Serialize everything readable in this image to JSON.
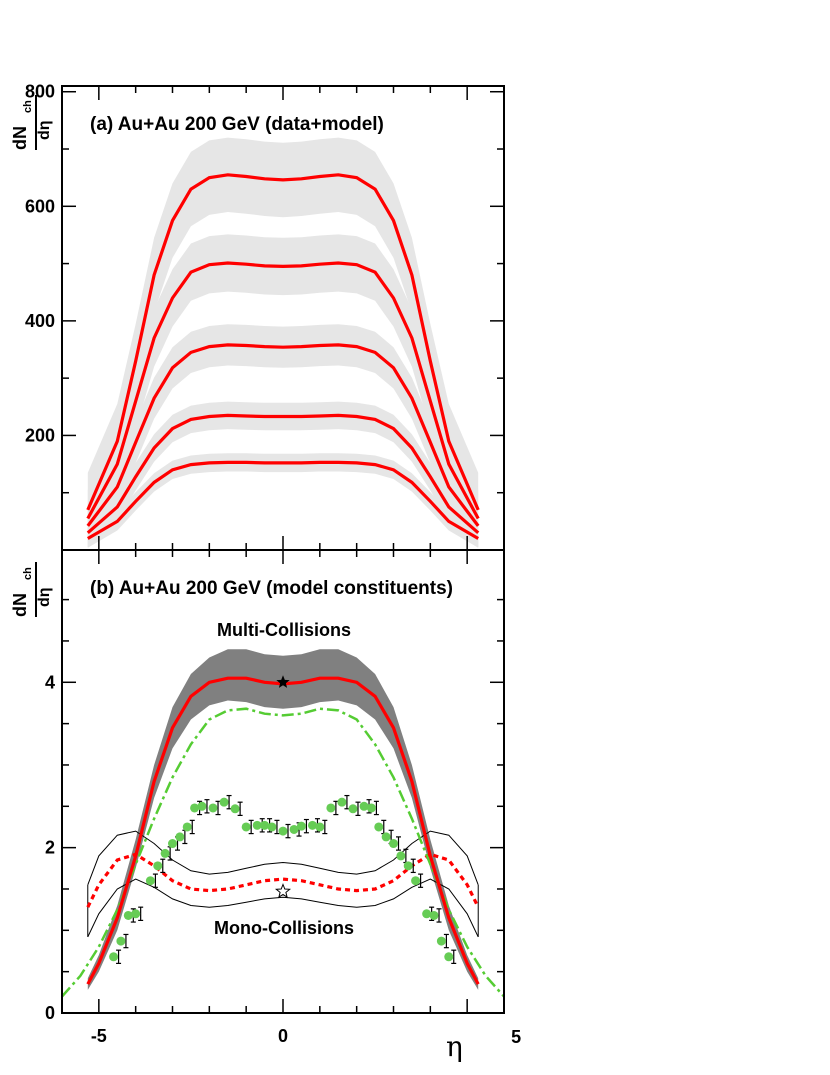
{
  "chart_data": [
    {
      "panel": "a",
      "type": "line",
      "title": "(a) Au+Au 200 GeV (data+model)",
      "ylabel": {
        "numerator": "dN",
        "numerator_sub": "ch",
        "denominator": "dη"
      },
      "xlim": [
        -6,
        6
      ],
      "ylim": [
        0,
        810
      ],
      "yticks": [
        200,
        400,
        600,
        800
      ],
      "band_color": "#e6e6e6",
      "line_color": "#ff0000",
      "series": [
        {
          "x": [
            -5.3,
            -4.5,
            -4,
            -3.5,
            -3,
            -2.5,
            -2,
            -1.5,
            -1,
            -0.5,
            0,
            0.5,
            1,
            1.5,
            2,
            2.5,
            3,
            3.5,
            4,
            4.5,
            5.3
          ],
          "y": [
            70,
            190,
            330,
            480,
            575,
            630,
            650,
            655,
            652,
            648,
            646,
            648,
            652,
            655,
            650,
            630,
            575,
            480,
            330,
            190,
            70
          ],
          "band_width": 65
        },
        {
          "x": [
            -5.3,
            -4.5,
            -4,
            -3.5,
            -3,
            -2.5,
            -2,
            -1.5,
            -1,
            -0.5,
            0,
            0.5,
            1,
            1.5,
            2,
            2.5,
            3,
            3.5,
            4,
            4.5,
            5.3
          ],
          "y": [
            55,
            150,
            260,
            370,
            440,
            485,
            498,
            501,
            499,
            496,
            495,
            496,
            499,
            501,
            498,
            485,
            440,
            370,
            260,
            150,
            55
          ],
          "band_width": 50
        },
        {
          "x": [
            -5.3,
            -4.5,
            -4,
            -3.5,
            -3,
            -2.5,
            -2,
            -1.5,
            -1,
            -0.5,
            0,
            0.5,
            1,
            1.5,
            2,
            2.5,
            3,
            3.5,
            4,
            4.5,
            5.3
          ],
          "y": [
            42,
            110,
            188,
            265,
            318,
            345,
            355,
            358,
            357,
            355,
            354,
            355,
            357,
            358,
            355,
            345,
            318,
            265,
            188,
            110,
            42
          ],
          "band_width": 36
        },
        {
          "x": [
            -5.3,
            -4.5,
            -4,
            -3.5,
            -3,
            -2.5,
            -2,
            -1.5,
            -1,
            -0.5,
            0,
            0.5,
            1,
            1.5,
            2,
            2.5,
            3,
            3.5,
            4,
            4.5,
            5.3
          ],
          "y": [
            30,
            75,
            128,
            178,
            212,
            228,
            233,
            235,
            234,
            233,
            233,
            233,
            234,
            235,
            233,
            228,
            212,
            178,
            128,
            75,
            30
          ],
          "band_width": 24
        },
        {
          "x": [
            -5.3,
            -4.5,
            -4,
            -3.5,
            -3,
            -2.5,
            -2,
            -1.5,
            -1,
            -0.5,
            0,
            0.5,
            1,
            1.5,
            2,
            2.5,
            3,
            3.5,
            4,
            4.5,
            5.3
          ],
          "y": [
            20,
            50,
            85,
            118,
            140,
            149,
            152,
            153,
            153,
            152,
            152,
            152,
            153,
            153,
            152,
            149,
            140,
            118,
            85,
            50,
            20
          ],
          "band_width": 16
        }
      ]
    },
    {
      "panel": "b",
      "type": "line",
      "title": "(b) Au+Au 200 GeV (model constituents)",
      "ylabel": {
        "numerator": "dN",
        "numerator_sub": "ch",
        "denominator": "dη"
      },
      "xlabel": "η",
      "xlim": [
        -6,
        6
      ],
      "ylim": [
        0,
        5.6
      ],
      "xticks": [
        -5,
        0,
        5
      ],
      "yticks": [
        0,
        2,
        4
      ],
      "annotations": [
        "Multi-Collisions",
        "Mono-Collisions"
      ],
      "multi_band": {
        "color": "#808080",
        "x": [
          -5.3,
          -5,
          -4.5,
          -4,
          -3.5,
          -3,
          -2.5,
          -2,
          -1.5,
          -1,
          -0.5,
          0,
          0.5,
          1,
          1.5,
          2,
          2.5,
          3,
          3.5,
          4,
          4.5,
          5,
          5.3
        ],
        "upper": [
          0.42,
          0.7,
          1.3,
          2.1,
          3.0,
          3.7,
          4.1,
          4.3,
          4.4,
          4.4,
          4.34,
          4.32,
          4.34,
          4.4,
          4.4,
          4.3,
          4.1,
          3.7,
          3.0,
          2.1,
          1.3,
          0.7,
          0.42
        ],
        "lower": [
          0.28,
          0.5,
          1.0,
          1.75,
          2.6,
          3.2,
          3.55,
          3.72,
          3.78,
          3.76,
          3.7,
          3.68,
          3.7,
          3.76,
          3.78,
          3.72,
          3.55,
          3.2,
          2.6,
          1.75,
          1.0,
          0.5,
          0.28
        ]
      },
      "multi_line": {
        "color": "#ff0000",
        "x": [
          -5.3,
          -5,
          -4.5,
          -4,
          -3.5,
          -3,
          -2.5,
          -2,
          -1.5,
          -1,
          -0.5,
          0,
          0.5,
          1,
          1.5,
          2,
          2.5,
          3,
          3.5,
          4,
          4.5,
          5,
          5.3
        ],
        "y": [
          0.35,
          0.6,
          1.15,
          1.9,
          2.8,
          3.45,
          3.83,
          4.0,
          4.05,
          4.05,
          4.0,
          3.98,
          4.0,
          4.05,
          4.05,
          4.0,
          3.83,
          3.45,
          2.8,
          1.9,
          1.15,
          0.6,
          0.35
        ]
      },
      "green_dashdot": {
        "color": "#55cc33",
        "x": [
          -6,
          -5.5,
          -5,
          -4.5,
          -4,
          -3.5,
          -3,
          -2.5,
          -2,
          -1.5,
          -1,
          -0.5,
          0,
          0.5,
          1,
          1.5,
          2,
          2.5,
          3,
          3.5,
          4,
          4.5,
          5,
          5.5,
          6
        ],
        "y": [
          0.2,
          0.45,
          0.8,
          1.25,
          1.8,
          2.35,
          2.85,
          3.25,
          3.55,
          3.66,
          3.68,
          3.62,
          3.6,
          3.62,
          3.68,
          3.66,
          3.55,
          3.25,
          2.85,
          2.35,
          1.8,
          1.25,
          0.8,
          0.45,
          0.2
        ]
      },
      "mono_dotted": {
        "color": "#ff0000",
        "x": [
          -5.3,
          -5,
          -4.5,
          -4,
          -3.5,
          -3,
          -2.5,
          -2,
          -1.5,
          -1,
          -0.5,
          0,
          0.5,
          1,
          1.5,
          2,
          2.5,
          3,
          3.5,
          4,
          4.5,
          5,
          5.3
        ],
        "y": [
          1.28,
          1.55,
          1.85,
          1.92,
          1.78,
          1.6,
          1.5,
          1.48,
          1.5,
          1.55,
          1.6,
          1.62,
          1.6,
          1.55,
          1.5,
          1.48,
          1.5,
          1.6,
          1.78,
          1.92,
          1.85,
          1.55,
          1.28
        ]
      },
      "mono_band_upper": {
        "color": "#000000",
        "x": [
          -5.3,
          -5,
          -4.5,
          -4,
          -3.5,
          -3,
          -2.5,
          -2,
          -1.5,
          -1,
          -0.5,
          0,
          0.5,
          1,
          1.5,
          2,
          2.5,
          3,
          3.5,
          4,
          4.5,
          5,
          5.3
        ],
        "y": [
          1.55,
          1.9,
          2.15,
          2.2,
          2.05,
          1.85,
          1.72,
          1.68,
          1.7,
          1.75,
          1.8,
          1.82,
          1.8,
          1.75,
          1.7,
          1.68,
          1.72,
          1.85,
          2.05,
          2.2,
          2.15,
          1.9,
          1.55
        ]
      },
      "mono_band_lower": {
        "color": "#000000",
        "x": [
          -5.3,
          -5,
          -4.5,
          -4,
          -3.5,
          -3,
          -2.5,
          -2,
          -1.5,
          -1,
          -0.5,
          0,
          0.5,
          1,
          1.5,
          2,
          2.5,
          3,
          3.5,
          4,
          4.5,
          5,
          5.3
        ],
        "y": [
          0.92,
          1.2,
          1.5,
          1.62,
          1.52,
          1.38,
          1.3,
          1.28,
          1.3,
          1.34,
          1.38,
          1.4,
          1.38,
          1.34,
          1.3,
          1.28,
          1.3,
          1.38,
          1.52,
          1.62,
          1.5,
          1.2,
          0.92
        ]
      },
      "green_points": {
        "color": "#66cc55",
        "x": [
          -4.6,
          -4.4,
          -4.2,
          -4.0,
          -3.6,
          -3.4,
          -3.2,
          -3.0,
          -2.8,
          -2.6,
          -2.4,
          -2.2,
          -1.9,
          -1.6,
          -1.3,
          -1.0,
          -0.7,
          -0.5,
          -0.3,
          0.0,
          0.3,
          0.5,
          0.8,
          1.0,
          1.3,
          1.6,
          1.9,
          2.2,
          2.4,
          2.6,
          2.8,
          3.0,
          3.2,
          3.4,
          3.6,
          3.9,
          4.1,
          4.3,
          4.5
        ],
        "y": [
          0.68,
          0.87,
          1.18,
          1.2,
          1.6,
          1.78,
          1.93,
          2.05,
          2.13,
          2.25,
          2.48,
          2.5,
          2.48,
          2.55,
          2.47,
          2.25,
          2.27,
          2.27,
          2.25,
          2.2,
          2.22,
          2.26,
          2.27,
          2.25,
          2.48,
          2.55,
          2.47,
          2.5,
          2.48,
          2.25,
          2.13,
          2.05,
          1.9,
          1.78,
          1.6,
          1.2,
          1.18,
          0.87,
          0.68
        ],
        "err": [
          0.08,
          0.08,
          0.08,
          0.08,
          0.08,
          0.08,
          0.08,
          0.08,
          0.08,
          0.08,
          0.08,
          0.08,
          0.08,
          0.08,
          0.08,
          0.08,
          0.08,
          0.08,
          0.08,
          0.08,
          0.08,
          0.08,
          0.08,
          0.08,
          0.08,
          0.08,
          0.08,
          0.08,
          0.08,
          0.08,
          0.08,
          0.08,
          0.08,
          0.08,
          0.08,
          0.08,
          0.08,
          0.08,
          0.08
        ]
      },
      "filled_star": {
        "x": 0,
        "y": 4.0
      },
      "open_star": {
        "x": 0,
        "y": 1.47
      }
    }
  ]
}
